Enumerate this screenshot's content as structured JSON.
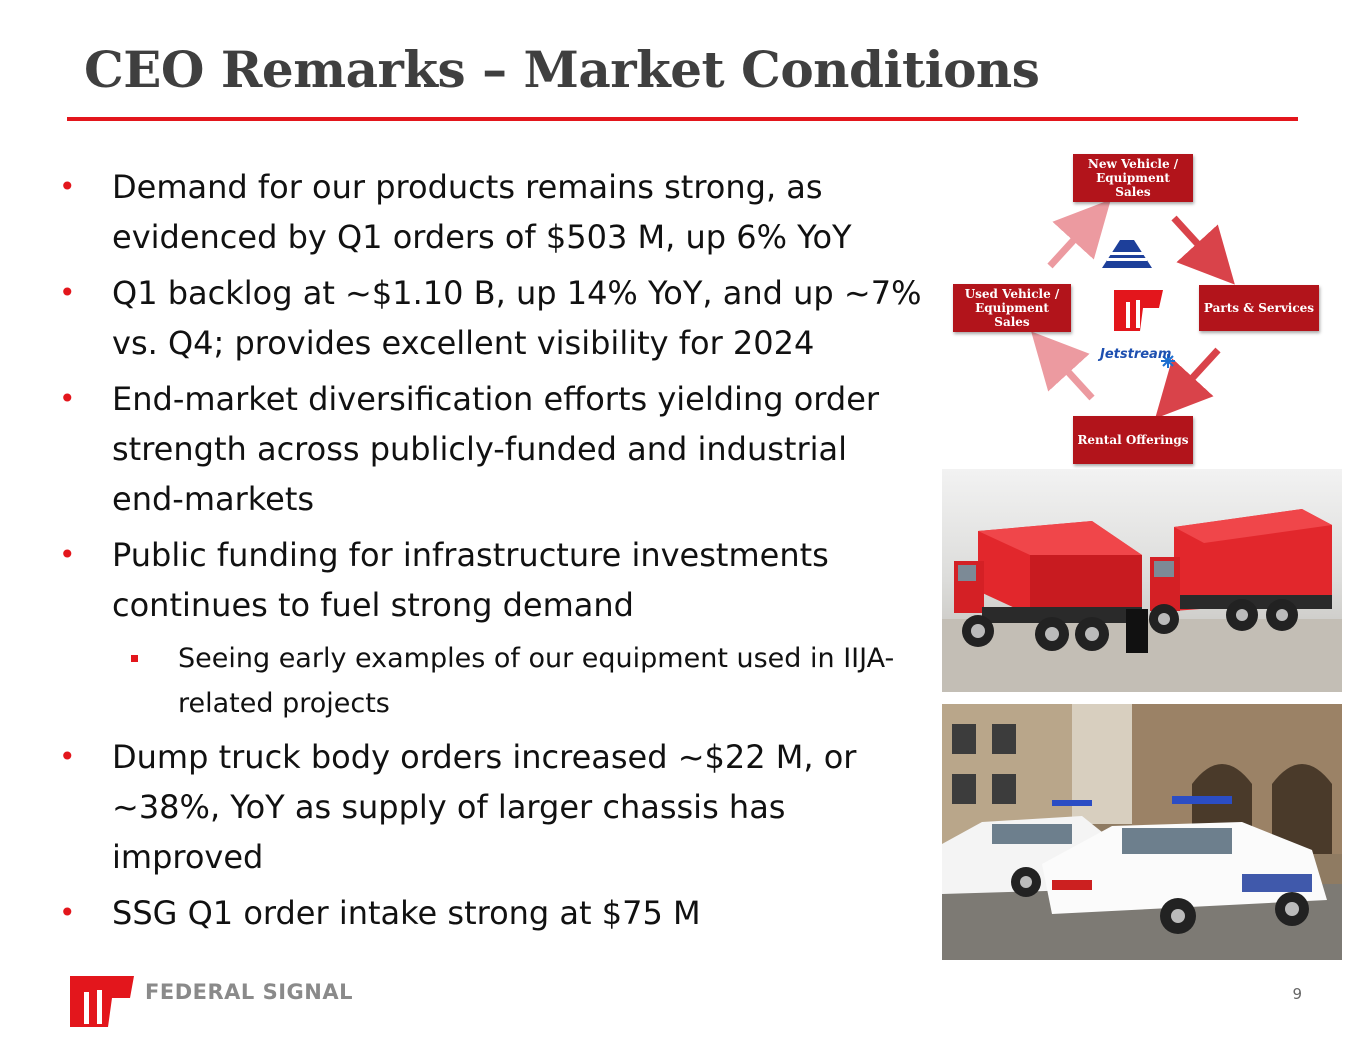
{
  "slide": {
    "title": "CEO Remarks – Market Conditions",
    "page_number": "9"
  },
  "bullets": [
    {
      "level": 1,
      "text": "Demand for our products remains strong, as evidenced by Q1 orders of $503 M, up 6% YoY"
    },
    {
      "level": 1,
      "text": "Q1 backlog at ~$1.10 B, up 14% YoY, and up ~7% vs. Q4; provides excellent visibility for 2024"
    },
    {
      "level": 1,
      "text": "End-market diversification efforts yielding order strength across publicly-funded and industrial end-markets"
    },
    {
      "level": 1,
      "text": "Public funding for infrastructure investments continues to fuel strong demand"
    },
    {
      "level": 2,
      "text": "Seeing early examples of our equipment used in IIJA-related projects"
    },
    {
      "level": 1,
      "text": "Dump truck body orders increased ~$22 M, or ~38%, YoY as supply of larger chassis has improved"
    },
    {
      "level": 1,
      "text": "SSG Q1 order intake strong at $75 M"
    }
  ],
  "cycle_diagram": {
    "top": "New Vehicle / Equipment Sales",
    "right": "Parts & Services",
    "bottom": "Rental Offerings",
    "left": "Used Vehicle / Equipment Sales",
    "center_brand": "Jetstream"
  },
  "footer": {
    "company": "FEDERAL SIGNAL"
  },
  "colors": {
    "accent_red": "#e3161c",
    "box_red": "#b2141b",
    "title_gray": "#3f3f3f"
  }
}
